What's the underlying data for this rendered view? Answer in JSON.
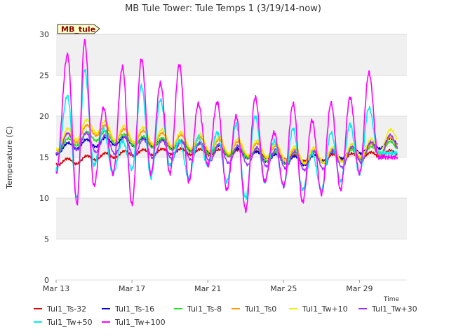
{
  "chart_data": {
    "type": "line",
    "title": "MB Tule Tower: Tule Temps 1 (3/19/14-now)",
    "xlabel": "Time",
    "ylabel": "Temperature (C)",
    "annotation": "MB_tule",
    "ylim": [
      0,
      30
    ],
    "xlim": [
      13,
      31.5
    ],
    "yticks": [
      0,
      5,
      10,
      15,
      20,
      25,
      30
    ],
    "xticks": [
      {
        "label": "Mar 13",
        "day": 13
      },
      {
        "label": "Mar 17",
        "day": 17
      },
      {
        "label": "Mar 21",
        "day": 21
      },
      {
        "label": "Mar 25",
        "day": 25
      },
      {
        "label": "Mar 29",
        "day": 29
      }
    ],
    "day_start": 13.0,
    "day_end": 31.0,
    "series": [
      {
        "name": "Tul1_Ts-32",
        "color": "#dd0000",
        "profile": {
          "kind": "trend",
          "anchors": [
            [
              13.0,
              14.4
            ],
            [
              14.0,
              14.5
            ],
            [
              15.0,
              15.0
            ],
            [
              17.0,
              15.5
            ],
            [
              19.0,
              15.7
            ],
            [
              21.0,
              15.6
            ],
            [
              23.0,
              15.5
            ],
            [
              24.0,
              15.3
            ],
            [
              26.0,
              14.9
            ],
            [
              28.0,
              15.0
            ],
            [
              30.0,
              15.3
            ],
            [
              31.0,
              15.6
            ]
          ]
        }
      },
      {
        "name": "Tul1_Ts-16",
        "color": "#0000cc",
        "profile": {
          "kind": "trend",
          "anchors": [
            [
              13.0,
              15.8
            ],
            [
              14.0,
              16.5
            ],
            [
              16.0,
              17.0
            ],
            [
              18.0,
              16.8
            ],
            [
              20.0,
              16.3
            ],
            [
              22.0,
              15.8
            ],
            [
              24.0,
              15.0
            ],
            [
              26.0,
              14.5
            ],
            [
              28.0,
              15.3
            ],
            [
              30.0,
              16.5
            ],
            [
              31.0,
              17.0
            ]
          ]
        }
      },
      {
        "name": "Tul1_Ts-8",
        "color": "#22dd22",
        "profile": {
          "kind": "trend",
          "anchors": [
            [
              13.0,
              16.0
            ],
            [
              14.0,
              17.0
            ],
            [
              15.0,
              17.7
            ],
            [
              17.0,
              17.0
            ],
            [
              19.0,
              16.6
            ],
            [
              21.0,
              16.0
            ],
            [
              23.0,
              15.6
            ],
            [
              25.0,
              14.8
            ],
            [
              27.0,
              15.0
            ],
            [
              29.0,
              15.3
            ],
            [
              31.0,
              16.5
            ]
          ]
        }
      },
      {
        "name": "Tul1_Ts0",
        "color": "#ff9900",
        "profile": {
          "kind": "trend",
          "anchors": [
            [
              13.0,
              16.5
            ],
            [
              14.0,
              17.5
            ],
            [
              15.0,
              18.5
            ],
            [
              16.0,
              17.8
            ],
            [
              18.0,
              17.3
            ],
            [
              20.0,
              16.8
            ],
            [
              22.0,
              16.2
            ],
            [
              24.0,
              15.8
            ],
            [
              26.0,
              15.0
            ],
            [
              28.0,
              15.2
            ],
            [
              30.0,
              16.0
            ],
            [
              31.0,
              17.0
            ]
          ]
        }
      },
      {
        "name": "Tul1_Tw+10",
        "color": "#eeee00",
        "profile": {
          "kind": "trend",
          "anchors": [
            [
              13.0,
              16.8
            ],
            [
              14.0,
              18.0
            ],
            [
              15.0,
              19.0
            ],
            [
              16.0,
              18.0
            ],
            [
              18.0,
              17.6
            ],
            [
              20.0,
              17.0
            ],
            [
              22.0,
              16.4
            ],
            [
              24.0,
              16.0
            ],
            [
              26.0,
              15.2
            ],
            [
              28.0,
              15.3
            ],
            [
              30.0,
              16.5
            ],
            [
              31.0,
              18.0
            ]
          ]
        }
      },
      {
        "name": "Tul1_Tw+30",
        "color": "#9933ff",
        "profile": {
          "kind": "trend",
          "anchors": [
            [
              13.0,
              16.5
            ],
            [
              14.0,
              17.0
            ],
            [
              16.0,
              16.5
            ],
            [
              18.0,
              16.0
            ],
            [
              20.0,
              15.8
            ],
            [
              22.0,
              15.4
            ],
            [
              24.0,
              15.0
            ],
            [
              26.0,
              14.5
            ],
            [
              28.0,
              14.8
            ],
            [
              30.0,
              16.0
            ],
            [
              31.0,
              17.0
            ]
          ]
        }
      },
      {
        "name": "Tul1_Tw+50",
        "color": "#00eeee",
        "profile": {
          "kind": "diurnal",
          "peaks": [
            [
              13.6,
              22.5
            ],
            [
              14.5,
              25.7
            ],
            [
              15.5,
              18.5
            ],
            [
              16.5,
              17.0
            ],
            [
              17.5,
              23.7
            ],
            [
              18.5,
              22.0
            ],
            [
              19.5,
              17.0
            ],
            [
              20.5,
              17.5
            ],
            [
              21.5,
              18.0
            ],
            [
              22.5,
              19.0
            ],
            [
              23.5,
              20.0
            ],
            [
              24.5,
              17.0
            ],
            [
              25.5,
              18.5
            ],
            [
              26.5,
              15.5
            ],
            [
              27.5,
              18.0
            ],
            [
              28.5,
              19.0
            ],
            [
              29.5,
              21.0
            ]
          ],
          "mins": [
            [
              13.0,
              13.5
            ],
            [
              14.1,
              10.0
            ],
            [
              15.0,
              14.0
            ],
            [
              16.0,
              13.0
            ],
            [
              17.0,
              13.5
            ],
            [
              18.0,
              12.5
            ],
            [
              19.0,
              14.0
            ],
            [
              20.0,
              12.5
            ],
            [
              21.0,
              14.0
            ],
            [
              22.0,
              12.0
            ],
            [
              23.0,
              10.0
            ],
            [
              24.0,
              12.0
            ],
            [
              25.0,
              11.5
            ],
            [
              26.0,
              11.0
            ],
            [
              27.0,
              11.0
            ],
            [
              28.0,
              12.0
            ],
            [
              29.0,
              13.0
            ],
            [
              30.0,
              15.5
            ]
          ]
        }
      },
      {
        "name": "Tul1_Tw+100",
        "color": "#ff00ff",
        "profile": {
          "kind": "diurnal",
          "peaks": [
            [
              13.6,
              27.5
            ],
            [
              14.5,
              29.2
            ],
            [
              15.5,
              21.0
            ],
            [
              16.5,
              26.0
            ],
            [
              17.5,
              27.0
            ],
            [
              18.5,
              24.0
            ],
            [
              19.5,
              26.3
            ],
            [
              20.5,
              21.5
            ],
            [
              21.5,
              21.7
            ],
            [
              22.5,
              20.0
            ],
            [
              23.5,
              22.3
            ],
            [
              24.5,
              18.0
            ],
            [
              25.5,
              21.5
            ],
            [
              26.5,
              19.5
            ],
            [
              27.5,
              21.6
            ],
            [
              28.5,
              22.3
            ],
            [
              29.5,
              25.3
            ]
          ],
          "mins": [
            [
              13.0,
              13.0
            ],
            [
              14.1,
              9.3
            ],
            [
              15.0,
              11.5
            ],
            [
              16.0,
              13.0
            ],
            [
              17.0,
              9.2
            ],
            [
              18.0,
              13.0
            ],
            [
              19.0,
              13.0
            ],
            [
              20.0,
              12.0
            ],
            [
              21.0,
              14.0
            ],
            [
              22.0,
              11.0
            ],
            [
              23.0,
              8.5
            ],
            [
              24.0,
              12.0
            ],
            [
              25.0,
              11.5
            ],
            [
              26.0,
              9.5
            ],
            [
              27.0,
              10.5
            ],
            [
              28.0,
              11.0
            ],
            [
              29.0,
              13.0
            ],
            [
              30.0,
              15.0
            ]
          ]
        }
      }
    ]
  }
}
